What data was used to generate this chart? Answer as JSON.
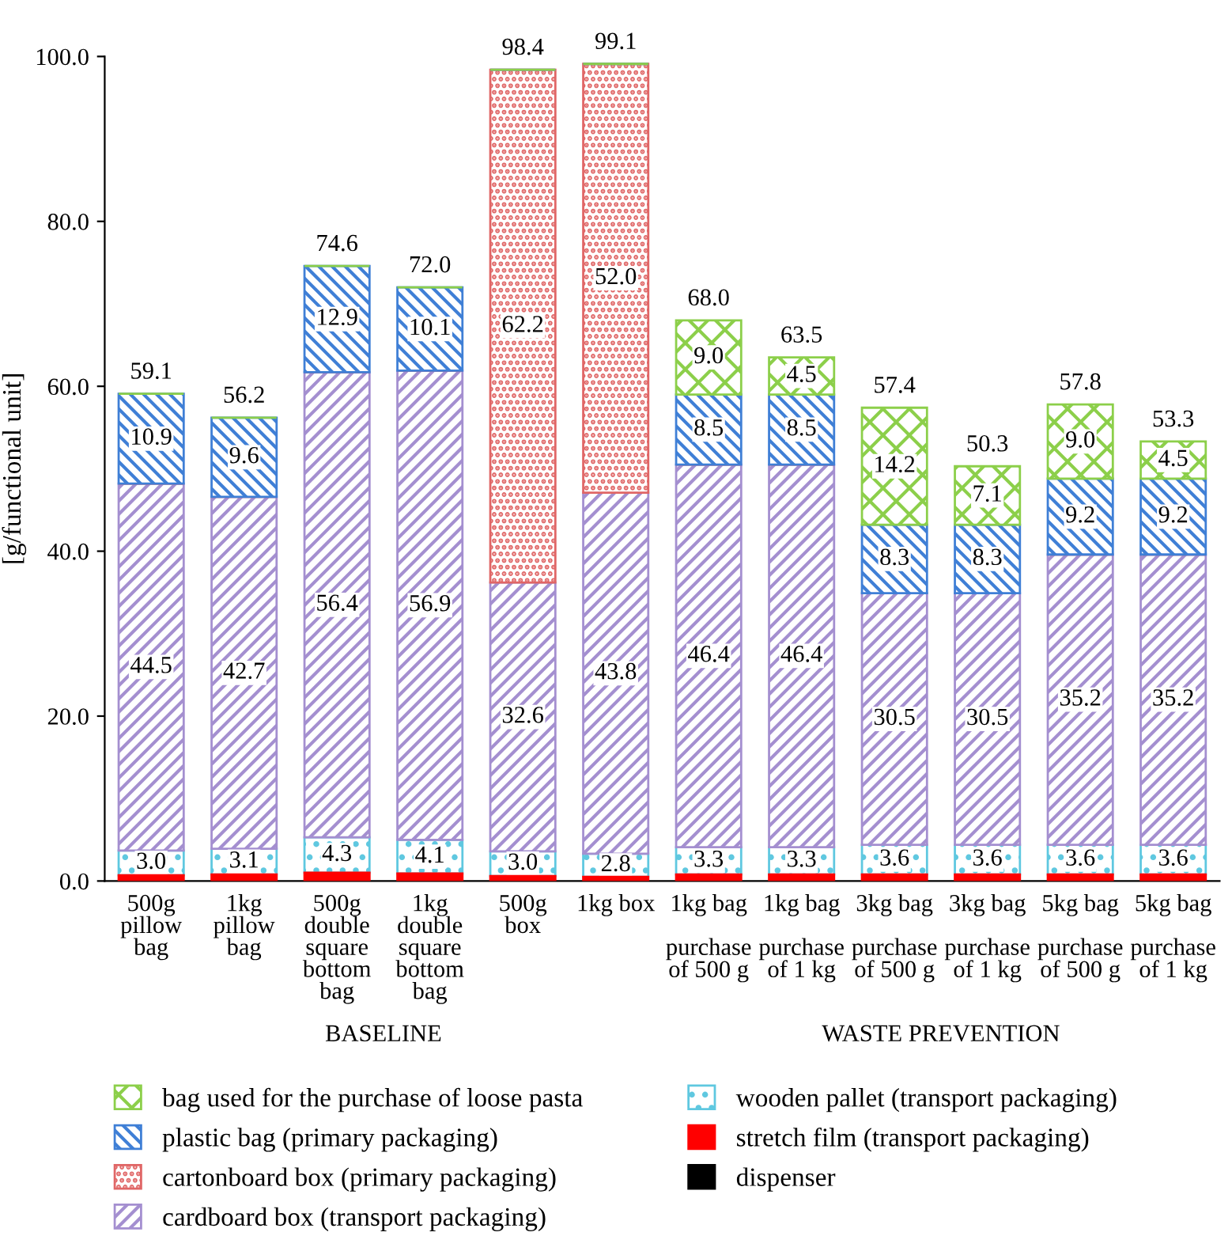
{
  "chart_data": {
    "type": "bar",
    "stacked": true,
    "ylabel": "[g/functional unit]",
    "categories": [
      "500g\npillow\nbag",
      "1kg\npillow\nbag",
      "500g\ndouble\nsquare\nbottom\nbag",
      "1kg\ndouble\nsquare\nbottom\nbag",
      "500g\nbox",
      "1kg box",
      "1kg bag\n\npurchase\nof 500 g",
      "1kg bag\n\npurchase\nof 1 kg",
      "3kg bag\n\npurchase\nof 500 g",
      "3kg bag\n\npurchase\nof 1 kg",
      "5kg bag\n\npurchase\nof 500 g",
      "5kg bag\n\npurchase\nof 1 kg"
    ],
    "series": [
      {
        "name": "dispenser",
        "color": "#000000",
        "values": [
          0,
          0,
          0,
          0,
          0,
          0,
          0,
          0,
          0,
          0,
          0,
          0
        ]
      },
      {
        "name": "stretch film (transport packaging)",
        "color": "#ff0000",
        "values": [
          0.7,
          0.8,
          1.0,
          0.9,
          0.6,
          0.5,
          0.8,
          0.8,
          0.8,
          0.8,
          0.8,
          0.8
        ]
      },
      {
        "name": "wooden pallet (transport packaging)",
        "color": "#5fc8e0",
        "values": [
          3.0,
          3.1,
          4.3,
          4.1,
          3.0,
          2.8,
          3.3,
          3.3,
          3.6,
          3.6,
          3.6,
          3.6
        ],
        "value_labels": [
          "3.0",
          "3.1",
          "4.3",
          "4.1",
          "3.0",
          "2.8",
          "3.3",
          "3.3",
          "3.6",
          "3.6",
          "3.6",
          "3.6"
        ]
      },
      {
        "name": "cardboard box (transport packaging)",
        "color": "#a48fd0",
        "values": [
          44.5,
          42.7,
          56.4,
          56.9,
          32.6,
          43.8,
          46.4,
          46.4,
          30.5,
          30.5,
          35.2,
          35.2
        ],
        "value_labels": [
          "44.5",
          "42.7",
          "56.4",
          "56.9",
          "32.6",
          "43.8",
          "46.4",
          "46.4",
          "30.5",
          "30.5",
          "35.2",
          "35.2"
        ]
      },
      {
        "name": "cartonboard box (primary packaging)",
        "color": "#e06666",
        "values": [
          0,
          0,
          0,
          0,
          62.2,
          52.0,
          0,
          0,
          0,
          0,
          0,
          0
        ],
        "value_labels": [
          null,
          null,
          null,
          null,
          "62.2",
          "52.0",
          null,
          null,
          null,
          null,
          null,
          null
        ]
      },
      {
        "name": "plastic bag (primary packaging)",
        "color": "#3f7fd6",
        "values": [
          10.9,
          9.6,
          12.9,
          10.1,
          0,
          0,
          8.5,
          8.5,
          8.3,
          8.3,
          9.2,
          9.2
        ],
        "value_labels": [
          "10.9",
          "9.6",
          "12.9",
          "10.1",
          null,
          null,
          "8.5",
          "8.5",
          "8.3",
          "8.3",
          "9.2",
          "9.2"
        ]
      },
      {
        "name": "bag used for the purchase of loose pasta",
        "color": "#8ccf4a",
        "values": [
          0,
          0,
          0,
          0,
          0,
          0,
          9.0,
          4.5,
          14.2,
          7.1,
          9.0,
          4.5
        ],
        "value_labels": [
          null,
          null,
          null,
          null,
          null,
          null,
          "9.0",
          "4.5",
          "14.2",
          "7.1",
          "9.0",
          "4.5"
        ]
      }
    ],
    "totals": [
      "59.1",
      "56.2",
      "74.6",
      "72.0",
      "98.4",
      "99.1",
      "68.0",
      "63.5",
      "57.4",
      "50.3",
      "57.8",
      "53.3"
    ],
    "ylim": [
      0,
      100
    ],
    "yticks": [
      {
        "value": 0,
        "label": "0.0"
      },
      {
        "value": 20,
        "label": "20.0"
      },
      {
        "value": 40,
        "label": "40.0"
      },
      {
        "value": 60,
        "label": "60.0"
      },
      {
        "value": 80,
        "label": "80.0"
      },
      {
        "value": 100,
        "label": "100.0"
      }
    ],
    "annotations": [
      "BASELINE",
      "WASTE PREVENTION"
    ],
    "legend": "bottom",
    "grid": false
  }
}
